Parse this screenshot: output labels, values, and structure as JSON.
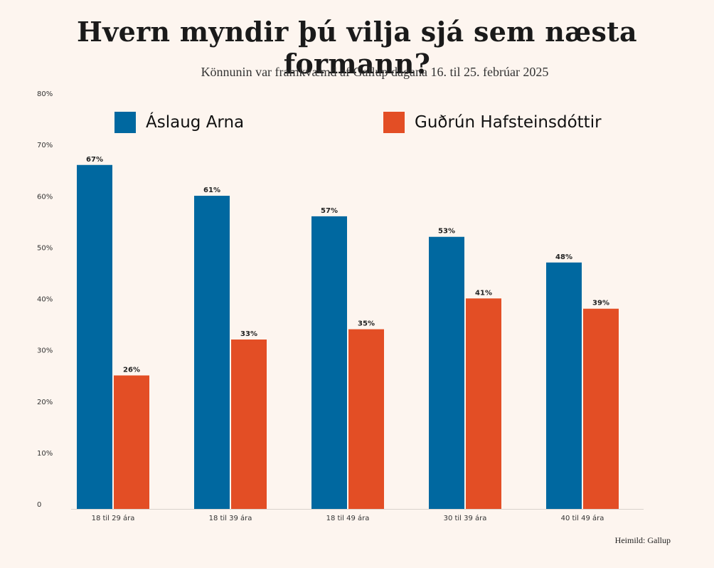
{
  "title": "Hvern myndir þú vilja sjá sem næsta formann?",
  "subtitle": "Könnunin var framkvæmd af Gallup dagana 16. til 25. febrúar 2025",
  "source": "Heimild: Gallup",
  "colors": {
    "series_a": "#0068a0",
    "series_b": "#e34e25",
    "background": "#fdf5ef"
  },
  "chart_data": {
    "type": "bar",
    "title": "Hvern myndir þú vilja sjá sem næsta formann?",
    "subtitle": "Könnunin var framkvæmd af Gallup dagana 16. til 25. febrúar 2025",
    "categories": [
      "18 til 29 ára",
      "18 til 39 ára",
      "18 til 49 ára",
      "30 til 39 ára",
      "40 til 49 ára"
    ],
    "series": [
      {
        "name": "Áslaug Arna",
        "values": [
          67,
          61,
          57,
          53,
          48
        ],
        "labels": [
          "67%",
          "61%",
          "57%",
          "53%",
          "48%"
        ]
      },
      {
        "name": "Guðrún Hafsteinsdóttir",
        "values": [
          26,
          33,
          35,
          41,
          39
        ],
        "labels": [
          "26%",
          "33%",
          "35%",
          "41%",
          "39%"
        ]
      }
    ],
    "ylim": [
      0,
      80
    ],
    "yticks": [
      "0",
      "10%",
      "20%",
      "30%",
      "40%",
      "50%",
      "60%",
      "70%",
      "80%"
    ],
    "xlabel": "",
    "ylabel": "",
    "grid": false,
    "legend": "top"
  }
}
